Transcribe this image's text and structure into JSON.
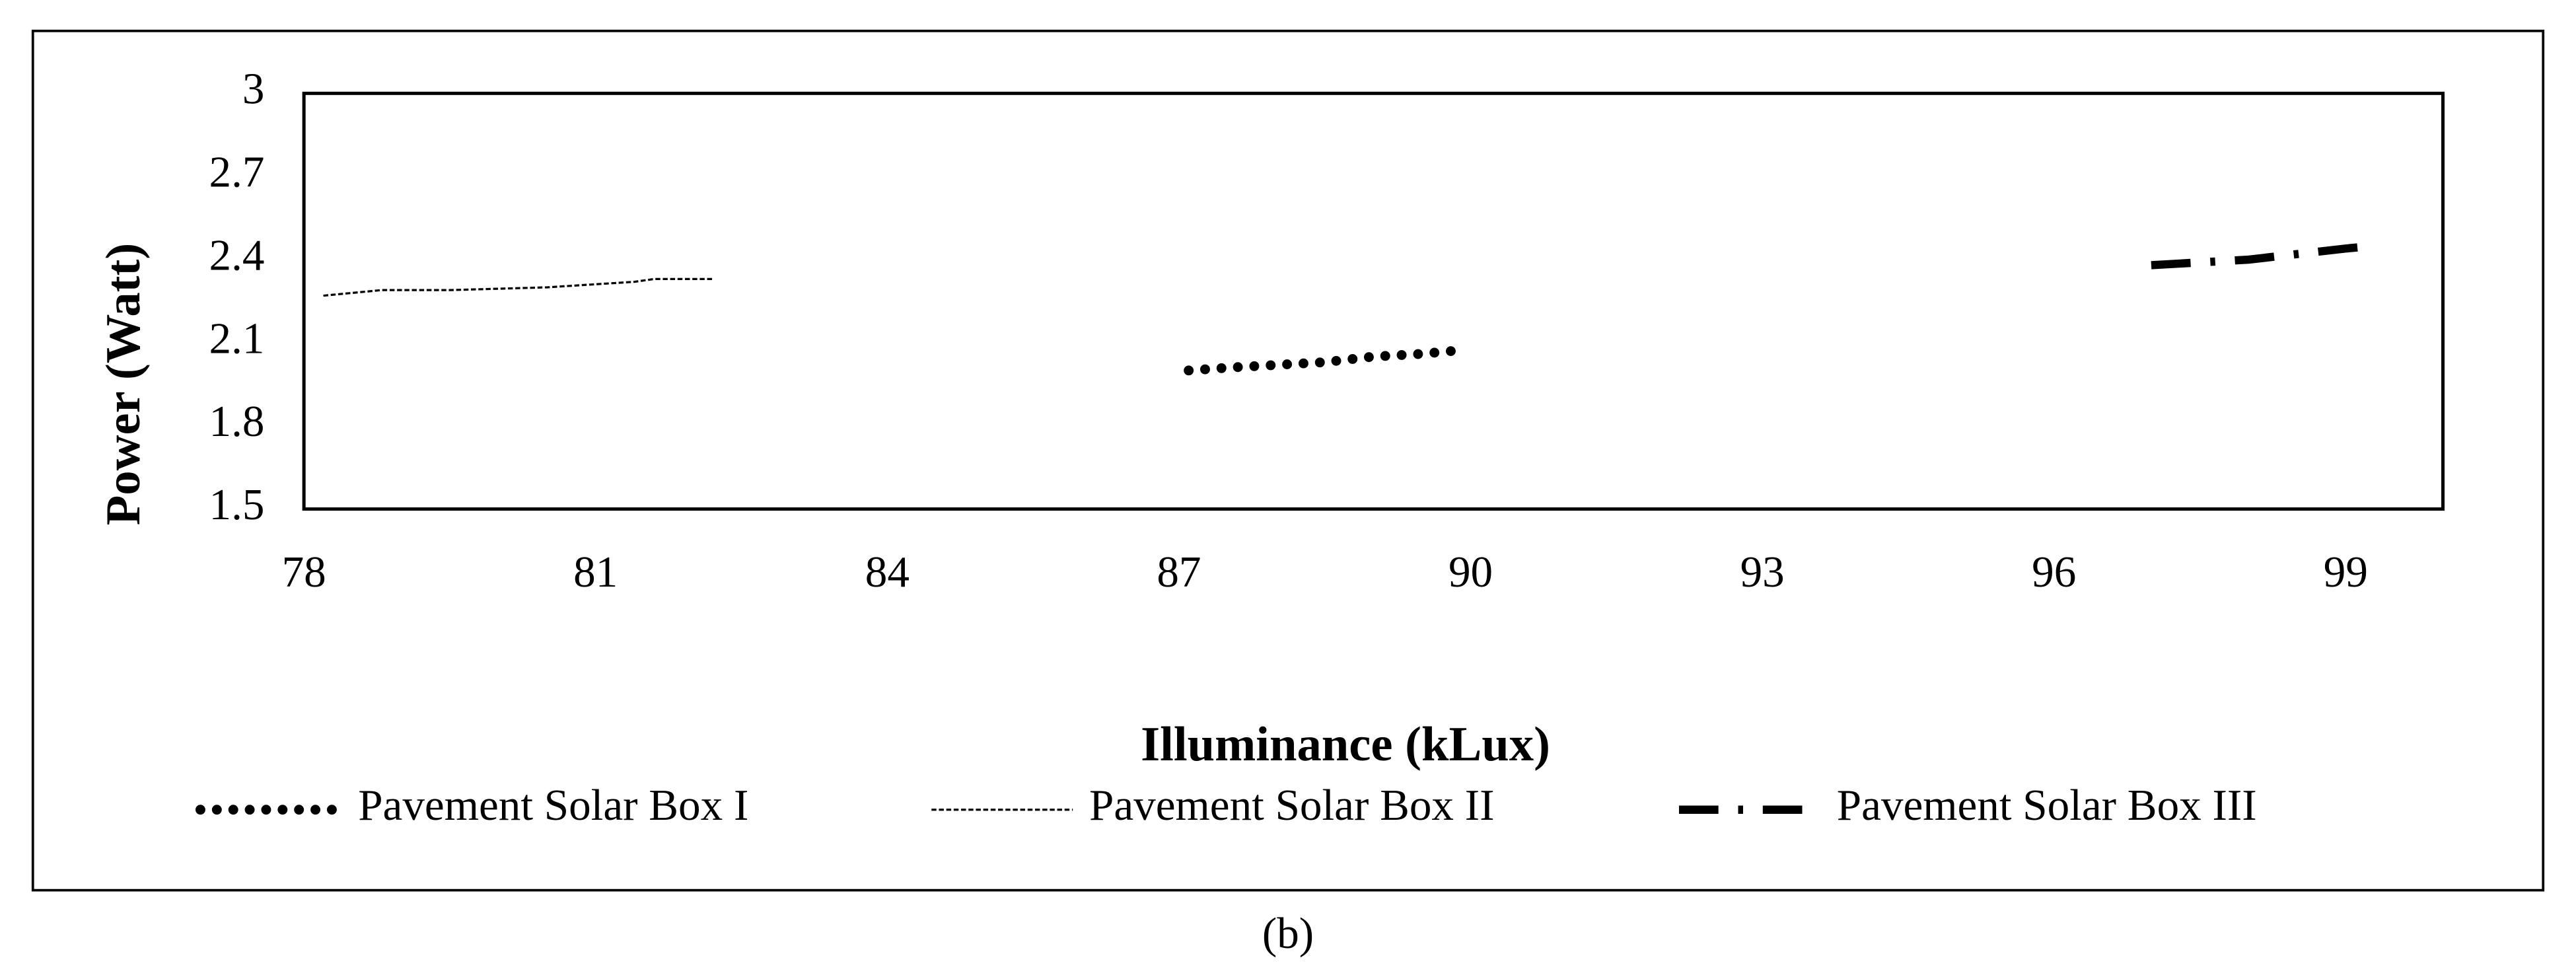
{
  "chart_data": {
    "type": "line",
    "x_label": "Illuminance (kLux)",
    "y_label": "Power (Watt)",
    "caption": "(b)",
    "xlim": [
      78,
      100
    ],
    "xticks": [
      78,
      81,
      84,
      87,
      90,
      93,
      96,
      99
    ],
    "ylim": [
      1.5,
      3
    ],
    "yticks": [
      1.5,
      1.8,
      2.1,
      2.4,
      2.7,
      3
    ],
    "grid": false,
    "series": [
      {
        "name": "Pavement Solar Box I",
        "color": "#000000",
        "style": "dotted",
        "x": [
          87.1,
          87.5,
          88.0,
          88.5,
          89.0,
          89.5,
          89.8
        ],
        "values": [
          2.0,
          2.01,
          2.02,
          2.03,
          2.05,
          2.06,
          2.07
        ]
      },
      {
        "name": "Pavement Solar Box II",
        "color": "#000000",
        "style": "dashed",
        "x": [
          78.2,
          78.8,
          79.5,
          80.5,
          81.4,
          81.6,
          82.2
        ],
        "values": [
          2.27,
          2.29,
          2.29,
          2.3,
          2.32,
          2.33,
          2.33
        ]
      },
      {
        "name": "Pavement Solar Box III",
        "color": "#000000",
        "style": "dashdot",
        "x": [
          97.0,
          97.5,
          98.0,
          98.5,
          99.0,
          99.3
        ],
        "values": [
          2.38,
          2.39,
          2.4,
          2.42,
          2.44,
          2.45
        ]
      }
    ]
  }
}
